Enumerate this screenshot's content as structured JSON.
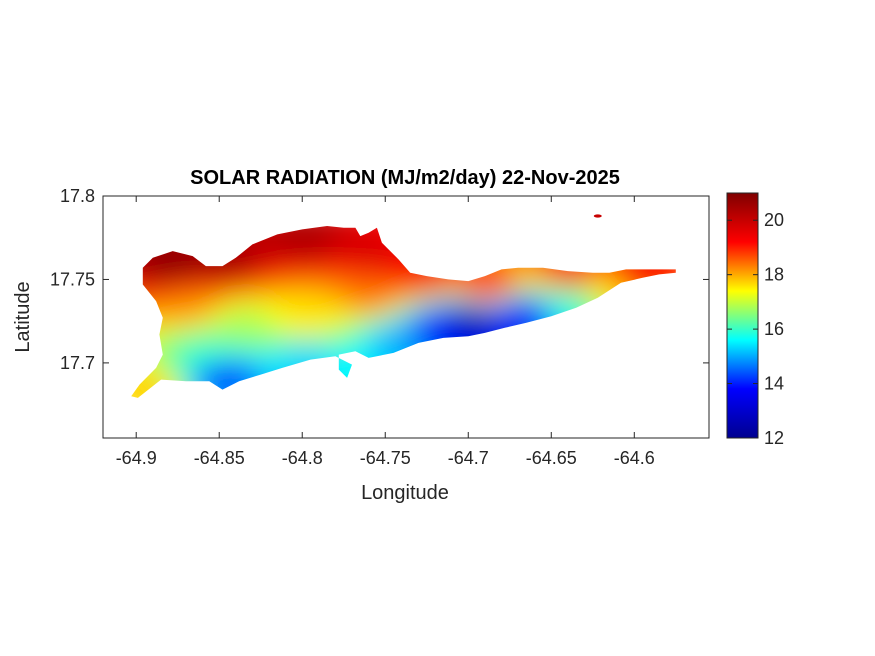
{
  "chart_data": {
    "type": "heatmap",
    "title": "SOLAR RADIATION (MJ/m2/day) 22-Nov-2025",
    "xlabel": "Longitude",
    "ylabel": "Latitude",
    "xlim": [
      -64.92,
      -64.555
    ],
    "ylim": [
      17.655,
      17.8
    ],
    "x_ticks": [
      -64.9,
      -64.85,
      -64.8,
      -64.75,
      -64.7,
      -64.65,
      -64.6
    ],
    "x_tick_labels": [
      "-64.9",
      "-64.85",
      "-64.8",
      "-64.75",
      "-64.7",
      "-64.65",
      "-64.6"
    ],
    "y_ticks": [
      17.7,
      17.75,
      17.8
    ],
    "y_tick_labels": [
      "17.7",
      "17.75",
      "17.8"
    ],
    "colorbar": {
      "colormap": "jet",
      "clim": [
        12,
        21
      ],
      "ticks": [
        12,
        14,
        16,
        18,
        20
      ],
      "tick_labels": [
        "12",
        "14",
        "16",
        "18",
        "20"
      ]
    },
    "colormap_stops": [
      "#00008F",
      "#0000FF",
      "#00FFFF",
      "#FFFF00",
      "#FF0000",
      "#800000"
    ],
    "island_outline_lonlat": [
      [
        -64.899,
        17.679
      ],
      [
        -64.885,
        17.69
      ],
      [
        -64.87,
        17.689
      ],
      [
        -64.856,
        17.689
      ],
      [
        -64.848,
        17.684
      ],
      [
        -64.838,
        17.689
      ],
      [
        -64.825,
        17.693
      ],
      [
        -64.812,
        17.697
      ],
      [
        -64.795,
        17.702
      ],
      [
        -64.78,
        17.704
      ],
      [
        -64.77,
        17.699
      ],
      [
        -64.773,
        17.691
      ],
      [
        -64.778,
        17.696
      ],
      [
        -64.778,
        17.705
      ],
      [
        -64.768,
        17.707
      ],
      [
        -64.76,
        17.703
      ],
      [
        -64.745,
        17.706
      ],
      [
        -64.73,
        17.712
      ],
      [
        -64.715,
        17.715
      ],
      [
        -64.7,
        17.716
      ],
      [
        -64.69,
        17.718
      ],
      [
        -64.678,
        17.721
      ],
      [
        -64.665,
        17.724
      ],
      [
        -64.65,
        17.728
      ],
      [
        -64.635,
        17.733
      ],
      [
        -64.622,
        17.739
      ],
      [
        -64.608,
        17.748
      ],
      [
        -64.595,
        17.751
      ],
      [
        -64.585,
        17.753
      ],
      [
        -64.575,
        17.754
      ],
      [
        -64.575,
        17.756
      ],
      [
        -64.59,
        17.756
      ],
      [
        -64.605,
        17.756
      ],
      [
        -64.615,
        17.754
      ],
      [
        -64.625,
        17.754
      ],
      [
        -64.64,
        17.755
      ],
      [
        -64.655,
        17.757
      ],
      [
        -64.67,
        17.757
      ],
      [
        -64.68,
        17.756
      ],
      [
        -64.69,
        17.752
      ],
      [
        -64.7,
        17.749
      ],
      [
        -64.712,
        17.75
      ],
      [
        -64.725,
        17.752
      ],
      [
        -64.735,
        17.754
      ],
      [
        -64.742,
        17.762
      ],
      [
        -64.752,
        17.772
      ],
      [
        -64.755,
        17.781
      ],
      [
        -64.76,
        17.778
      ],
      [
        -64.765,
        17.776
      ],
      [
        -64.768,
        17.781
      ],
      [
        -64.775,
        17.781
      ],
      [
        -64.785,
        17.782
      ],
      [
        -64.8,
        17.78
      ],
      [
        -64.815,
        17.777
      ],
      [
        -64.83,
        17.771
      ],
      [
        -64.84,
        17.763
      ],
      [
        -64.848,
        17.758
      ],
      [
        -64.858,
        17.758
      ],
      [
        -64.866,
        17.764
      ],
      [
        -64.878,
        17.767
      ],
      [
        -64.89,
        17.763
      ],
      [
        -64.896,
        17.757
      ],
      [
        -64.896,
        17.747
      ],
      [
        -64.888,
        17.737
      ],
      [
        -64.884,
        17.727
      ],
      [
        -64.886,
        17.717
      ],
      [
        -64.884,
        17.705
      ],
      [
        -64.888,
        17.697
      ],
      [
        -64.898,
        17.687
      ],
      [
        -64.903,
        17.68
      ]
    ],
    "field_samples": [
      {
        "lon": -64.88,
        "lat": 17.758,
        "value": 20.9
      },
      {
        "lon": -64.85,
        "lat": 17.76,
        "value": 20.6
      },
      {
        "lon": -64.8,
        "lat": 17.773,
        "value": 20.4
      },
      {
        "lon": -64.76,
        "lat": 17.765,
        "value": 19.8
      },
      {
        "lon": -64.73,
        "lat": 17.75,
        "value": 19.4
      },
      {
        "lon": -64.69,
        "lat": 17.745,
        "value": 19.2
      },
      {
        "lon": -64.64,
        "lat": 17.752,
        "value": 19.4
      },
      {
        "lon": -64.6,
        "lat": 17.752,
        "value": 19.4
      },
      {
        "lon": -64.87,
        "lat": 17.733,
        "value": 18.2
      },
      {
        "lon": -64.84,
        "lat": 17.722,
        "value": 16.8
      },
      {
        "lon": -64.8,
        "lat": 17.725,
        "value": 17.6
      },
      {
        "lon": -64.86,
        "lat": 17.705,
        "value": 16.0
      },
      {
        "lon": -64.85,
        "lat": 17.69,
        "value": 14.0
      },
      {
        "lon": -64.8,
        "lat": 17.7,
        "value": 15.2
      },
      {
        "lon": -64.745,
        "lat": 17.712,
        "value": 15.0
      },
      {
        "lon": -64.72,
        "lat": 17.72,
        "value": 13.6
      },
      {
        "lon": -64.7,
        "lat": 17.723,
        "value": 12.2
      },
      {
        "lon": -64.67,
        "lat": 17.728,
        "value": 13.6
      },
      {
        "lon": -64.64,
        "lat": 17.736,
        "value": 15.8
      },
      {
        "lon": -64.62,
        "lat": 17.744,
        "value": 17.6
      },
      {
        "lon": -64.76,
        "lat": 17.738,
        "value": 18.4
      },
      {
        "lon": -64.895,
        "lat": 17.683,
        "value": 17.8
      }
    ],
    "islet": {
      "lon": -64.622,
      "lat": 17.788,
      "value": 20.0
    },
    "grid": false
  }
}
